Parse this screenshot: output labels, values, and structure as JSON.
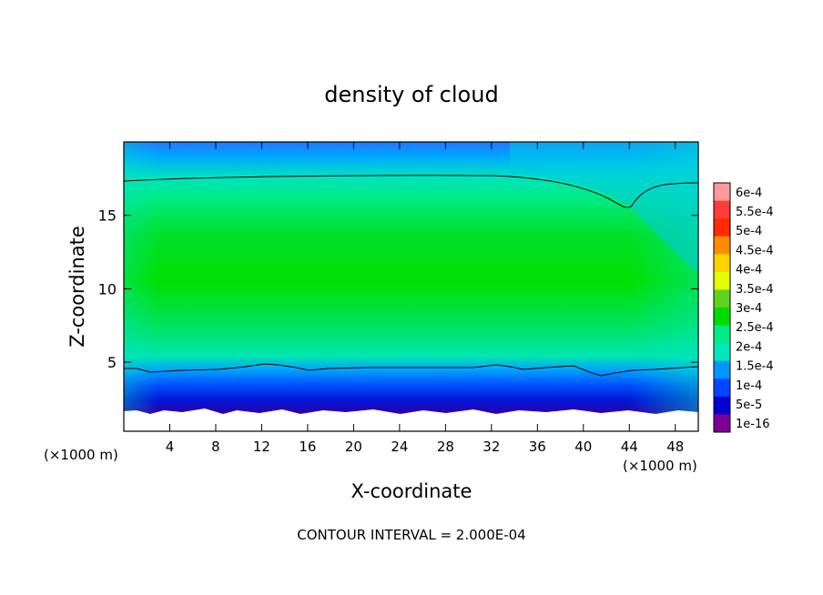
{
  "chart_data": {
    "type": "heatmap",
    "title": "density of cloud",
    "xlabel": "X-coordinate",
    "ylabel": "Z-coordinate",
    "x_unit_left": "(×1000 m)",
    "x_unit_right": "(×1000 m)",
    "xlim": [
      0,
      50
    ],
    "ylim": [
      0.3,
      20
    ],
    "x_ticks": [
      4,
      8,
      12,
      16,
      20,
      24,
      28,
      32,
      36,
      40,
      44,
      48
    ],
    "x_tick_labels": [
      "4",
      "8",
      "12",
      "16",
      "20",
      "24",
      "28",
      "32",
      "36",
      "40",
      "44",
      "48"
    ],
    "y_ticks": [
      5,
      10,
      15
    ],
    "y_tick_labels": [
      "5",
      "10",
      "15"
    ],
    "footnote": "CONTOUR INTERVAL = 2.000E-04",
    "colorbar": {
      "labels": [
        "6e-4",
        "5.5e-4",
        "5e-4",
        "4.5e-4",
        "4e-4",
        "3.5e-4",
        "3e-4",
        "2.5e-4",
        "2e-4",
        "1.5e-4",
        "1e-4",
        "5e-5",
        "1e-16"
      ],
      "colors": [
        "#ff9a9a",
        "#ff3c3c",
        "#ff2a00",
        "#ff8c00",
        "#ffd200",
        "#e1ff00",
        "#5fd21e",
        "#00dc00",
        "#00eb87",
        "#00e6be",
        "#0096ff",
        "#0046ff",
        "#0000d2",
        "#7d0096"
      ]
    },
    "contour_levels": [
      0.0002
    ],
    "field_profile": [
      {
        "z": 0.3,
        "density": null
      },
      {
        "z": 1.2,
        "density": 0.0
      },
      {
        "z": 2.0,
        "density": 4e-05
      },
      {
        "z": 3.0,
        "density": 0.00011
      },
      {
        "z": 4.2,
        "density": 0.0002
      },
      {
        "z": 7.0,
        "density": 0.00028
      },
      {
        "z": 10.0,
        "density": 0.0003
      },
      {
        "z": 14.0,
        "density": 0.00027
      },
      {
        "z": 17.3,
        "density": 0.0002
      },
      {
        "z": 19.0,
        "density": 0.00014
      },
      {
        "z": 20.0,
        "density": 0.0001
      }
    ]
  }
}
